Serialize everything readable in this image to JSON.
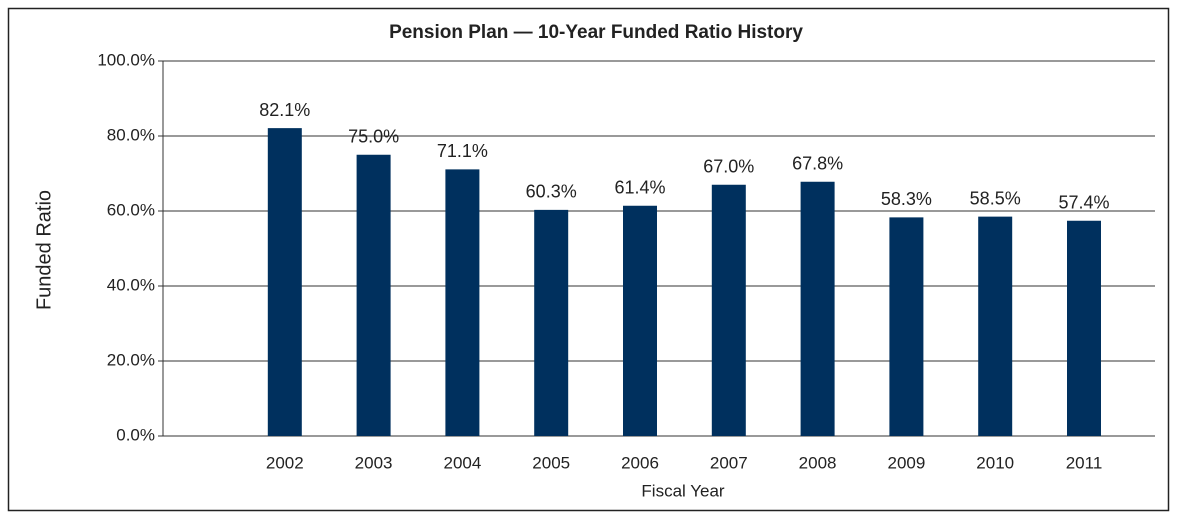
{
  "chart_data": {
    "type": "bar",
    "title": "Pension Plan — 10-Year Funded Ratio History",
    "x_label": "Fiscal Year",
    "y_label": "Funded Ratio",
    "categories": [
      null,
      "2002",
      "2003",
      "2004",
      "2005",
      "2006",
      "2007",
      "2008",
      "2009",
      "2010",
      "2011"
    ],
    "values": [
      null,
      82.1,
      75.0,
      71.1,
      60.3,
      61.4,
      67.0,
      67.8,
      58.3,
      58.5,
      57.4
    ],
    "value_labels": [
      null,
      "82.1%",
      "75.0%",
      "71.1%",
      "60.3%",
      "61.4%",
      "67.0%",
      "67.8%",
      "58.3%",
      "58.5%",
      "57.4%"
    ],
    "color": "#00305e",
    "ylim": [
      0,
      100
    ],
    "yticks": [
      {
        "value": 0,
        "label": "0.0%"
      },
      {
        "value": 20,
        "label": "20.0%"
      },
      {
        "value": 40,
        "label": "40.0%"
      },
      {
        "value": 60,
        "label": "60.0%"
      },
      {
        "value": 80,
        "label": "80.0%"
      },
      {
        "value": 100,
        "label": "100.0%"
      }
    ],
    "grid": true
  }
}
